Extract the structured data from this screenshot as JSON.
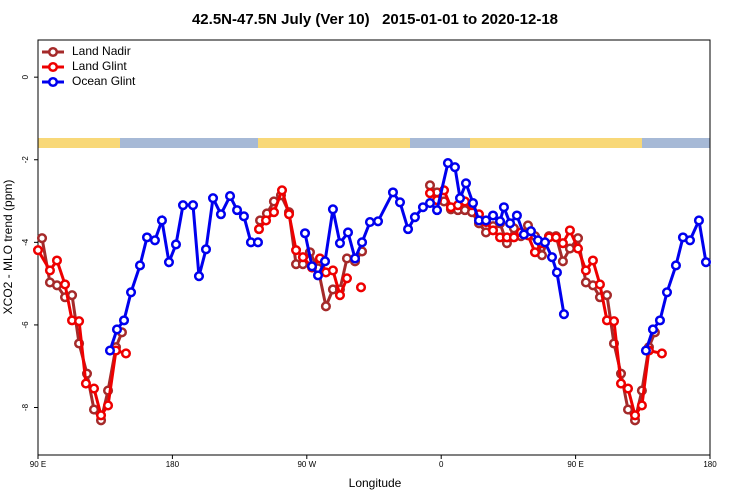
{
  "chart_data": {
    "type": "line",
    "title": "42.5N-47.5N July (Ver 10)   2015-01-01 to 2020-12-18",
    "x_label": "Longitude",
    "y_label": "XCO2 - MLO trend (ppm)",
    "xlim": [
      90,
      540
    ],
    "ylim": [
      -9.15,
      0.9
    ],
    "xticks": [
      {
        "value": 90,
        "label": "90 E"
      },
      180,
      {
        "value": 270,
        "label": "90 W"
      },
      {
        "value": 360,
        "label": "0"
      },
      {
        "value": 450,
        "label": "90 E"
      },
      {
        "value": 540,
        "label": "180"
      }
    ],
    "yticks": [
      0,
      -2,
      -4,
      -6,
      -8
    ],
    "legend": "top-left",
    "series": [
      {
        "name": "Land Nadir",
        "color": "#a52a2a",
        "x": [
          92.7,
          98.0,
          102.7,
          108.1,
          112.8,
          117.5,
          122.8,
          127.5,
          132.2,
          136.9,
          142.2,
          146.2,
          null,
          238.7,
          243.3,
          248.0,
          252.7,
          258.1,
          262.8,
          267.4,
          272.1,
          277.5,
          282.8,
          287.5,
          292.2,
          296.9,
          302.3,
          307.0,
          null,
          352.5,
          357.2,
          361.9,
          366.5,
          371.2,
          375.9,
          380.6,
          385.3,
          390.0,
          394.7,
          399.4,
          404.0,
          408.7,
          413.4,
          418.1,
          422.8,
          427.5,
          432.2,
          436.9,
          441.5,
          446.2,
          451.6,
          456.9,
          461.6,
          466.3,
          471.0,
          475.7,
          480.4,
          485.1,
          489.8,
          494.4,
          499.1,
          503.1
        ],
        "values": [
          -3.9,
          -4.97,
          -5.04,
          -5.33,
          -5.28,
          -6.45,
          -7.18,
          -8.05,
          -8.31,
          -7.59,
          -6.54,
          -6.18,
          null,
          -3.47,
          -3.3,
          -3.01,
          -2.86,
          -3.27,
          -4.53,
          -4.53,
          -4.24,
          -4.63,
          -5.55,
          -5.14,
          -5.14,
          -4.39,
          -4.46,
          -4.22,
          null,
          -2.62,
          -2.79,
          -3.01,
          -3.2,
          -3.22,
          -3.22,
          -3.27,
          -3.54,
          -3.76,
          -3.61,
          -3.54,
          -4.02,
          -3.66,
          -3.85,
          -3.59,
          -3.85,
          -4.31,
          -3.85,
          -3.85,
          -4.46,
          -4.15,
          -3.9,
          -4.97,
          -5.04,
          -5.33,
          -5.28,
          -6.45,
          -7.18,
          -8.05,
          -8.31,
          -7.59,
          -6.54,
          -6.18
        ]
      },
      {
        "name": "Land Glint",
        "color": "#ee0000",
        "x": [
          90,
          98.0,
          102.7,
          108.1,
          112.8,
          117.5,
          122.1,
          127.5,
          132.2,
          136.9,
          142.2,
          148.9,
          null,
          238.0,
          242.7,
          248.0,
          253.4,
          258.1,
          262.8,
          267.4,
          273.5,
          278.8,
          282.8,
          287.5,
          292.2,
          296.9,
          null,
          306.3,
          null,
          352.5,
          357.2,
          361.9,
          366.5,
          371.2,
          375.9,
          380.6,
          385.3,
          390.0,
          394.7,
          399.4,
          404.0,
          408.7,
          413.4,
          418.1,
          422.8,
          427.5,
          432.2,
          436.9,
          441.5,
          446.2,
          451.6,
          456.9,
          461.6,
          466.3,
          471.0,
          475.7,
          480.4,
          485.1,
          489.8,
          494.4,
          499.1,
          507.8
        ],
        "values": [
          -4.19,
          -4.68,
          -4.44,
          -5.02,
          -5.89,
          -5.91,
          -7.42,
          -7.54,
          -8.19,
          -7.95,
          -6.62,
          -6.69,
          null,
          -3.68,
          -3.47,
          -3.27,
          -2.74,
          -3.32,
          -4.19,
          -4.36,
          -4.61,
          -4.39,
          -4.73,
          -4.68,
          -5.28,
          -4.87,
          null,
          -5.09,
          null,
          -2.81,
          -2.98,
          -2.74,
          -3.15,
          -3.1,
          -3.01,
          -3.1,
          -3.32,
          -3.51,
          -3.71,
          -3.88,
          -3.88,
          -3.88,
          -3.76,
          -3.83,
          -4.24,
          -4.02,
          -3.88,
          -3.88,
          -4.02,
          -3.71,
          -4.15,
          -4.68,
          -4.44,
          -5.02,
          -5.89,
          -5.91,
          -7.42,
          -7.54,
          -8.19,
          -7.95,
          -6.62,
          -6.69
        ]
      },
      {
        "name": "Ocean Glint",
        "color": "#0000ee",
        "x": [
          138.2,
          142.9,
          147.6,
          152.3,
          158.3,
          163.0,
          168.3,
          173.0,
          177.7,
          182.4,
          187.1,
          193.8,
          197.8,
          202.5,
          207.2,
          212.5,
          218.6,
          223.3,
          227.9,
          232.6,
          237.3,
          null,
          268.8,
          273.5,
          277.5,
          282.2,
          287.5,
          292.2,
          297.6,
          302.3,
          307.0,
          312.3,
          317.7,
          327.7,
          332.4,
          337.8,
          342.4,
          347.8,
          352.5,
          357.2,
          364.5,
          369.2,
          372.6,
          376.6,
          381.3,
          385.3,
          390.0,
          394.7,
          399.4,
          402.0,
          406.1,
          410.7,
          415.4,
          420.1,
          424.8,
          429.5,
          434.2,
          437.5,
          442.2,
          null,
          497.1,
          501.8,
          506.5,
          511.2,
          517.2,
          521.9,
          526.6,
          532.6,
          537.3
        ],
        "values": [
          -6.62,
          -6.11,
          -5.89,
          -5.21,
          -4.56,
          -3.88,
          -3.95,
          -3.47,
          -4.48,
          -4.05,
          -3.1,
          -3.1,
          -4.82,
          -4.17,
          -2.93,
          -3.32,
          -2.88,
          -3.22,
          -3.37,
          -4.0,
          -4.0,
          null,
          -3.78,
          -4.58,
          -4.8,
          -4.46,
          -3.2,
          -4.02,
          -3.76,
          -4.39,
          -4.0,
          -3.51,
          -3.49,
          -2.79,
          -3.03,
          -3.68,
          -3.39,
          -3.15,
          -3.05,
          -3.22,
          -2.08,
          -2.18,
          -2.93,
          -2.57,
          -3.05,
          -3.47,
          -3.47,
          -3.35,
          -3.49,
          -3.15,
          -3.54,
          -3.35,
          -3.81,
          -3.73,
          -3.95,
          -4.0,
          -4.36,
          -4.73,
          -5.74,
          null,
          -6.62,
          -6.11,
          -5.89,
          -5.21,
          -4.56,
          -3.88,
          -3.95,
          -3.47,
          -4.48
        ]
      }
    ]
  }
}
